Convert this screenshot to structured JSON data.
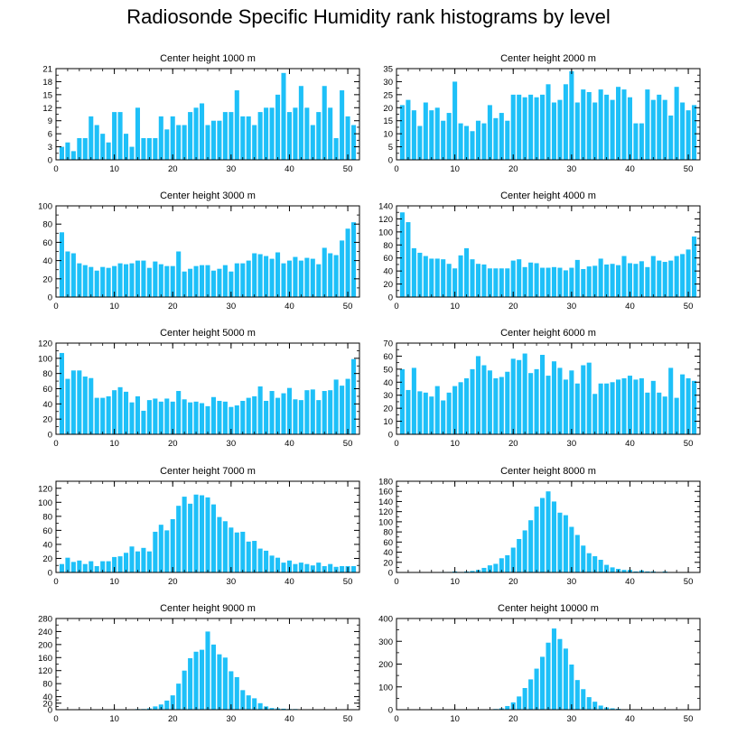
{
  "figure": {
    "title": "Radiosonde Specific Humidity rank histograms by level",
    "bar_color": "#1ec0f8",
    "axis_color": "#000000"
  },
  "chart_data": [
    {
      "type": "bar",
      "title": "Center height 1000 m",
      "xlim": [
        0,
        52
      ],
      "ylim": [
        0,
        21
      ],
      "xticks": [
        0,
        10,
        20,
        30,
        40,
        50
      ],
      "yticks": [
        0,
        3,
        6,
        9,
        12,
        15,
        18,
        21
      ],
      "x": [
        1,
        2,
        3,
        4,
        5,
        6,
        7,
        8,
        9,
        10,
        11,
        12,
        13,
        14,
        15,
        16,
        17,
        18,
        19,
        20,
        21,
        22,
        23,
        24,
        25,
        26,
        27,
        28,
        29,
        30,
        31,
        32,
        33,
        34,
        35,
        36,
        37,
        38,
        39,
        40,
        41,
        42,
        43,
        44,
        45,
        46,
        47,
        48,
        49,
        50,
        51
      ],
      "values": [
        3,
        4,
        2,
        5,
        5,
        10,
        8,
        6,
        4,
        11,
        11,
        6,
        3,
        12,
        5,
        5,
        5,
        10,
        7,
        10,
        8,
        8,
        11,
        12,
        13,
        8,
        9,
        9,
        11,
        11,
        16,
        10,
        10,
        8,
        11,
        12,
        12,
        15,
        20,
        11,
        12,
        17,
        12,
        8,
        11,
        17,
        12,
        5,
        16,
        10,
        8
      ]
    },
    {
      "type": "bar",
      "title": "Center height 2000 m",
      "xlim": [
        0,
        52
      ],
      "ylim": [
        0,
        35
      ],
      "xticks": [
        0,
        10,
        20,
        30,
        40,
        50
      ],
      "yticks": [
        0,
        5,
        10,
        15,
        20,
        25,
        30,
        35
      ],
      "x": [
        1,
        2,
        3,
        4,
        5,
        6,
        7,
        8,
        9,
        10,
        11,
        12,
        13,
        14,
        15,
        16,
        17,
        18,
        19,
        20,
        21,
        22,
        23,
        24,
        25,
        26,
        27,
        28,
        29,
        30,
        31,
        32,
        33,
        34,
        35,
        36,
        37,
        38,
        39,
        40,
        41,
        42,
        43,
        44,
        45,
        46,
        47,
        48,
        49,
        50,
        51
      ],
      "values": [
        21,
        23,
        19,
        13,
        22,
        19,
        20,
        15,
        18,
        30,
        14,
        13,
        11,
        15,
        14,
        21,
        16,
        18,
        15,
        25,
        25,
        24,
        25,
        24,
        25,
        29,
        22,
        23,
        29,
        34,
        22,
        27,
        26,
        22,
        27,
        25,
        23,
        28,
        27,
        24,
        14,
        14,
        27,
        23,
        25,
        23,
        17,
        28,
        22,
        19,
        21
      ]
    },
    {
      "type": "bar",
      "title": "Center height 3000 m",
      "xlim": [
        0,
        52
      ],
      "ylim": [
        0,
        100
      ],
      "xticks": [
        0,
        10,
        20,
        30,
        40,
        50
      ],
      "yticks": [
        0,
        20,
        40,
        60,
        80,
        100
      ],
      "x": [
        1,
        2,
        3,
        4,
        5,
        6,
        7,
        8,
        9,
        10,
        11,
        12,
        13,
        14,
        15,
        16,
        17,
        18,
        19,
        20,
        21,
        22,
        23,
        24,
        25,
        26,
        27,
        28,
        29,
        30,
        31,
        32,
        33,
        34,
        35,
        36,
        37,
        38,
        39,
        40,
        41,
        42,
        43,
        44,
        45,
        46,
        47,
        48,
        49,
        50,
        51
      ],
      "values": [
        71,
        50,
        48,
        37,
        35,
        33,
        29,
        33,
        32,
        34,
        37,
        36,
        37,
        40,
        40,
        32,
        39,
        36,
        34,
        34,
        50,
        28,
        31,
        34,
        35,
        35,
        29,
        31,
        35,
        28,
        37,
        37,
        40,
        48,
        47,
        45,
        42,
        49,
        37,
        40,
        44,
        40,
        43,
        42,
        36,
        54,
        48,
        46,
        62,
        75,
        82
      ]
    },
    {
      "type": "bar",
      "title": "Center height 4000 m",
      "xlim": [
        0,
        52
      ],
      "ylim": [
        0,
        140
      ],
      "xticks": [
        0,
        10,
        20,
        30,
        40,
        50
      ],
      "yticks": [
        0,
        20,
        40,
        60,
        80,
        100,
        120,
        140
      ],
      "x": [
        1,
        2,
        3,
        4,
        5,
        6,
        7,
        8,
        9,
        10,
        11,
        12,
        13,
        14,
        15,
        16,
        17,
        18,
        19,
        20,
        21,
        22,
        23,
        24,
        25,
        26,
        27,
        28,
        29,
        30,
        31,
        32,
        33,
        34,
        35,
        36,
        37,
        38,
        39,
        40,
        41,
        42,
        43,
        44,
        45,
        46,
        47,
        48,
        49,
        50,
        51
      ],
      "values": [
        130,
        115,
        75,
        68,
        63,
        59,
        59,
        58,
        51,
        44,
        64,
        75,
        58,
        51,
        50,
        44,
        44,
        44,
        44,
        56,
        58,
        46,
        53,
        52,
        45,
        45,
        46,
        45,
        41,
        45,
        57,
        43,
        47,
        48,
        59,
        50,
        51,
        49,
        63,
        52,
        51,
        55,
        46,
        63,
        56,
        54,
        56,
        63,
        66,
        73,
        93
      ]
    },
    {
      "type": "bar",
      "title": "Center height 5000 m",
      "xlim": [
        0,
        52
      ],
      "ylim": [
        0,
        120
      ],
      "xticks": [
        0,
        10,
        20,
        30,
        40,
        50
      ],
      "yticks": [
        0,
        20,
        40,
        60,
        80,
        100,
        120
      ],
      "x": [
        1,
        2,
        3,
        4,
        5,
        6,
        7,
        8,
        9,
        10,
        11,
        12,
        13,
        14,
        15,
        16,
        17,
        18,
        19,
        20,
        21,
        22,
        23,
        24,
        25,
        26,
        27,
        28,
        29,
        30,
        31,
        32,
        33,
        34,
        35,
        36,
        37,
        38,
        39,
        40,
        41,
        42,
        43,
        44,
        45,
        46,
        47,
        48,
        49,
        50,
        51
      ],
      "values": [
        107,
        73,
        84,
        84,
        76,
        74,
        48,
        48,
        50,
        58,
        62,
        56,
        42,
        50,
        31,
        45,
        47,
        43,
        47,
        43,
        57,
        46,
        42,
        43,
        41,
        37,
        49,
        44,
        43,
        36,
        38,
        44,
        48,
        50,
        63,
        44,
        57,
        48,
        54,
        61,
        46,
        45,
        58,
        59,
        45,
        57,
        58,
        72,
        64,
        73,
        99
      ]
    },
    {
      "type": "bar",
      "title": "Center height 6000 m",
      "xlim": [
        0,
        52
      ],
      "ylim": [
        0,
        70
      ],
      "xticks": [
        0,
        10,
        20,
        30,
        40,
        50
      ],
      "yticks": [
        0,
        10,
        20,
        30,
        40,
        50,
        60,
        70
      ],
      "x": [
        1,
        2,
        3,
        4,
        5,
        6,
        7,
        8,
        9,
        10,
        11,
        12,
        13,
        14,
        15,
        16,
        17,
        18,
        19,
        20,
        21,
        22,
        23,
        24,
        25,
        26,
        27,
        28,
        29,
        30,
        31,
        32,
        33,
        34,
        35,
        36,
        37,
        38,
        39,
        40,
        41,
        42,
        43,
        44,
        45,
        46,
        47,
        48,
        49,
        50,
        51
      ],
      "values": [
        50,
        34,
        51,
        33,
        32,
        29,
        37,
        26,
        32,
        37,
        40,
        43,
        50,
        60,
        53,
        49,
        43,
        44,
        48,
        58,
        57,
        62,
        47,
        50,
        61,
        45,
        56,
        51,
        42,
        49,
        39,
        53,
        55,
        31,
        39,
        39,
        40,
        42,
        43,
        45,
        42,
        43,
        32,
        41,
        32,
        29,
        51,
        28,
        46,
        43,
        41
      ]
    },
    {
      "type": "bar",
      "title": "Center height 7000 m",
      "xlim": [
        0,
        52
      ],
      "ylim": [
        0,
        130
      ],
      "xticks": [
        0,
        10,
        20,
        30,
        40,
        50
      ],
      "yticks": [
        0,
        20,
        40,
        60,
        80,
        100,
        120
      ],
      "x": [
        1,
        2,
        3,
        4,
        5,
        6,
        7,
        8,
        9,
        10,
        11,
        12,
        13,
        14,
        15,
        16,
        17,
        18,
        19,
        20,
        21,
        22,
        23,
        24,
        25,
        26,
        27,
        28,
        29,
        30,
        31,
        32,
        33,
        34,
        35,
        36,
        37,
        38,
        39,
        40,
        41,
        42,
        43,
        44,
        45,
        46,
        47,
        48,
        49,
        50,
        51
      ],
      "values": [
        12,
        21,
        15,
        17,
        12,
        16,
        9,
        16,
        16,
        22,
        23,
        28,
        37,
        30,
        35,
        30,
        58,
        68,
        60,
        76,
        95,
        108,
        98,
        111,
        110,
        107,
        97,
        79,
        73,
        64,
        57,
        58,
        44,
        45,
        34,
        31,
        24,
        21,
        14,
        17,
        12,
        14,
        12,
        10,
        14,
        9,
        12,
        8,
        9,
        9,
        9
      ]
    },
    {
      "type": "bar",
      "title": "Center height 8000 m",
      "xlim": [
        0,
        52
      ],
      "ylim": [
        0,
        180
      ],
      "xticks": [
        0,
        10,
        20,
        30,
        40,
        50
      ],
      "yticks": [
        0,
        20,
        40,
        60,
        80,
        100,
        120,
        140,
        160,
        180
      ],
      "x": [
        1,
        2,
        3,
        4,
        5,
        6,
        7,
        8,
        9,
        10,
        11,
        12,
        13,
        14,
        15,
        16,
        17,
        18,
        19,
        20,
        21,
        22,
        23,
        24,
        25,
        26,
        27,
        28,
        29,
        30,
        31,
        32,
        33,
        34,
        35,
        36,
        37,
        38,
        39,
        40,
        41,
        42,
        43,
        44,
        45,
        46,
        47,
        48,
        49,
        50,
        51
      ],
      "values": [
        0,
        0,
        0,
        0,
        0,
        0,
        0,
        1,
        1,
        2,
        1,
        2,
        3,
        5,
        9,
        14,
        17,
        28,
        34,
        49,
        66,
        83,
        103,
        130,
        147,
        160,
        140,
        118,
        113,
        90,
        74,
        53,
        38,
        32,
        25,
        15,
        10,
        7,
        5,
        5,
        2,
        4,
        2,
        2,
        1,
        2,
        0,
        0,
        0,
        0,
        0
      ]
    },
    {
      "type": "bar",
      "title": "Center height 9000 m",
      "xlim": [
        0,
        52
      ],
      "ylim": [
        0,
        280
      ],
      "xticks": [
        0,
        10,
        20,
        30,
        40,
        50
      ],
      "yticks": [
        0,
        20,
        40,
        80,
        120,
        160,
        200,
        240,
        280
      ],
      "x": [
        1,
        2,
        3,
        4,
        5,
        6,
        7,
        8,
        9,
        10,
        11,
        12,
        13,
        14,
        15,
        16,
        17,
        18,
        19,
        20,
        21,
        22,
        23,
        24,
        25,
        26,
        27,
        28,
        29,
        30,
        31,
        32,
        33,
        34,
        35,
        36,
        37,
        38,
        39,
        40,
        41,
        42,
        43,
        44,
        45,
        46,
        47,
        48,
        49,
        50,
        51
      ],
      "values": [
        0,
        0,
        0,
        0,
        0,
        0,
        0,
        0,
        0,
        0,
        0,
        0,
        1,
        2,
        2,
        4,
        10,
        16,
        28,
        44,
        80,
        120,
        158,
        178,
        184,
        240,
        200,
        170,
        160,
        118,
        100,
        60,
        44,
        35,
        20,
        10,
        5,
        4,
        3,
        2,
        2,
        1,
        0,
        0,
        0,
        0,
        0,
        0,
        0,
        0,
        0
      ]
    },
    {
      "type": "bar",
      "title": "Center height 10000 m",
      "xlim": [
        0,
        52
      ],
      "ylim": [
        0,
        400
      ],
      "xticks": [
        0,
        10,
        20,
        30,
        40,
        50
      ],
      "yticks": [
        0,
        100,
        200,
        300,
        400
      ],
      "x": [
        1,
        2,
        3,
        4,
        5,
        6,
        7,
        8,
        9,
        10,
        11,
        12,
        13,
        14,
        15,
        16,
        17,
        18,
        19,
        20,
        21,
        22,
        23,
        24,
        25,
        26,
        27,
        28,
        29,
        30,
        31,
        32,
        33,
        34,
        35,
        36,
        37,
        38,
        39,
        40,
        41,
        42,
        43,
        44,
        45,
        46,
        47,
        48,
        49,
        50,
        51
      ],
      "values": [
        0,
        0,
        0,
        0,
        0,
        0,
        0,
        0,
        0,
        0,
        0,
        0,
        0,
        0,
        0,
        1,
        3,
        6,
        16,
        32,
        58,
        95,
        133,
        180,
        232,
        294,
        356,
        310,
        268,
        198,
        130,
        90,
        55,
        35,
        18,
        10,
        6,
        4,
        2,
        1,
        1,
        0,
        0,
        0,
        0,
        0,
        0,
        0,
        0,
        0,
        0
      ]
    }
  ]
}
